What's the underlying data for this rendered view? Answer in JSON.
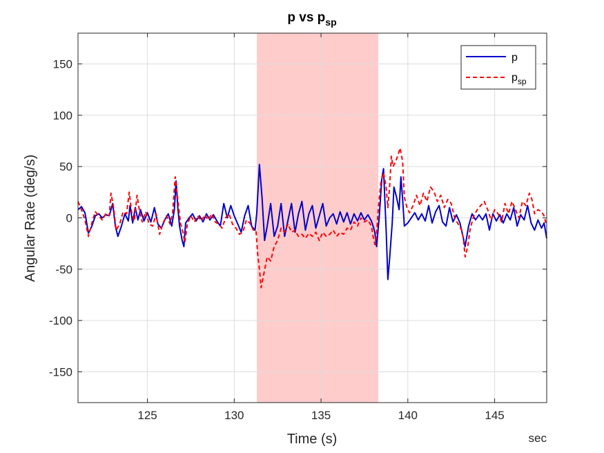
{
  "chart_data": {
    "type": "line",
    "title": "p vs p",
    "title_subscript": "sp",
    "xlabel": "Time (s)",
    "ylabel": "Angular Rate (deg/s)",
    "x_unit_label": "sec",
    "xlim": [
      121,
      148
    ],
    "ylim": [
      -180,
      180
    ],
    "xticks": [
      125,
      130,
      135,
      140,
      145
    ],
    "yticks": [
      -150,
      -100,
      -50,
      0,
      50,
      100,
      150
    ],
    "grid": true,
    "legend_position": "top-right",
    "highlight_region": {
      "x_start": 131.3,
      "x_end": 138.3,
      "color": "#ffcccc"
    },
    "series": [
      {
        "name": "p",
        "color": "#0000cc",
        "dash": "solid",
        "points": [
          [
            121.0,
            8
          ],
          [
            121.2,
            11
          ],
          [
            121.4,
            5
          ],
          [
            121.6,
            -15
          ],
          [
            121.8,
            -8
          ],
          [
            122.0,
            2
          ],
          [
            122.2,
            4
          ],
          [
            122.4,
            0
          ],
          [
            122.6,
            3
          ],
          [
            122.8,
            2
          ],
          [
            123.0,
            14
          ],
          [
            123.15,
            -8
          ],
          [
            123.3,
            -18
          ],
          [
            123.5,
            -8
          ],
          [
            123.7,
            4
          ],
          [
            123.9,
            -3
          ],
          [
            124.0,
            12
          ],
          [
            124.15,
            -5
          ],
          [
            124.3,
            10
          ],
          [
            124.45,
            -2
          ],
          [
            124.6,
            8
          ],
          [
            124.8,
            -3
          ],
          [
            125.0,
            5
          ],
          [
            125.2,
            -4
          ],
          [
            125.4,
            10
          ],
          [
            125.6,
            -6
          ],
          [
            125.8,
            -10
          ],
          [
            126.0,
            -2
          ],
          [
            126.2,
            4
          ],
          [
            126.4,
            -8
          ],
          [
            126.55,
            8
          ],
          [
            126.65,
            36
          ],
          [
            126.75,
            10
          ],
          [
            126.85,
            -8
          ],
          [
            127.0,
            -22
          ],
          [
            127.1,
            -28
          ],
          [
            127.2,
            -5
          ],
          [
            127.4,
            0
          ],
          [
            127.6,
            4
          ],
          [
            127.8,
            -3
          ],
          [
            128.0,
            2
          ],
          [
            128.2,
            -4
          ],
          [
            128.4,
            4
          ],
          [
            128.6,
            -2
          ],
          [
            128.8,
            3
          ],
          [
            129.0,
            -3
          ],
          [
            129.2,
            -8
          ],
          [
            129.4,
            14
          ],
          [
            129.6,
            0
          ],
          [
            129.8,
            12
          ],
          [
            130.0,
            2
          ],
          [
            130.2,
            -6
          ],
          [
            130.4,
            -14
          ],
          [
            130.6,
            2
          ],
          [
            130.8,
            12
          ],
          [
            131.0,
            -8
          ],
          [
            131.2,
            -12
          ],
          [
            131.3,
            5
          ],
          [
            131.45,
            52
          ],
          [
            131.6,
            20
          ],
          [
            131.75,
            -22
          ],
          [
            131.9,
            -8
          ],
          [
            132.1,
            14
          ],
          [
            132.3,
            -18
          ],
          [
            132.5,
            -8
          ],
          [
            132.7,
            14
          ],
          [
            132.9,
            -18
          ],
          [
            133.1,
            -2
          ],
          [
            133.3,
            14
          ],
          [
            133.5,
            -14
          ],
          [
            133.7,
            4
          ],
          [
            133.9,
            16
          ],
          [
            134.1,
            -12
          ],
          [
            134.3,
            4
          ],
          [
            134.5,
            12
          ],
          [
            134.7,
            -10
          ],
          [
            134.9,
            2
          ],
          [
            135.1,
            14
          ],
          [
            135.3,
            -8
          ],
          [
            135.5,
            0
          ],
          [
            135.7,
            4
          ],
          [
            135.9,
            -6
          ],
          [
            136.1,
            6
          ],
          [
            136.3,
            -4
          ],
          [
            136.5,
            5
          ],
          [
            136.7,
            -6
          ],
          [
            136.9,
            4
          ],
          [
            137.1,
            -3
          ],
          [
            137.3,
            5
          ],
          [
            137.5,
            -2
          ],
          [
            137.7,
            3
          ],
          [
            137.9,
            -3
          ],
          [
            138.0,
            -8
          ],
          [
            138.1,
            -14
          ],
          [
            138.2,
            -28
          ],
          [
            138.35,
            0
          ],
          [
            138.5,
            38
          ],
          [
            138.6,
            48
          ],
          [
            138.75,
            -12
          ],
          [
            138.85,
            -60
          ],
          [
            138.95,
            -40
          ],
          [
            139.1,
            -5
          ],
          [
            139.2,
            30
          ],
          [
            139.35,
            20
          ],
          [
            139.5,
            8
          ],
          [
            139.6,
            40
          ],
          [
            139.7,
            18
          ],
          [
            139.8,
            -8
          ],
          [
            140.0,
            -5
          ],
          [
            140.2,
            0
          ],
          [
            140.4,
            5
          ],
          [
            140.6,
            -2
          ],
          [
            140.8,
            4
          ],
          [
            141.0,
            -3
          ],
          [
            141.2,
            12
          ],
          [
            141.4,
            -5
          ],
          [
            141.6,
            6
          ],
          [
            141.8,
            12
          ],
          [
            142.0,
            -4
          ],
          [
            142.2,
            -8
          ],
          [
            142.4,
            10
          ],
          [
            142.6,
            -4
          ],
          [
            142.8,
            3
          ],
          [
            143.0,
            -5
          ],
          [
            143.2,
            -20
          ],
          [
            143.3,
            -28
          ],
          [
            143.5,
            -8
          ],
          [
            143.7,
            4
          ],
          [
            143.9,
            -2
          ],
          [
            144.1,
            3
          ],
          [
            144.3,
            -2
          ],
          [
            144.5,
            4
          ],
          [
            144.7,
            -12
          ],
          [
            144.9,
            4
          ],
          [
            145.1,
            -3
          ],
          [
            145.3,
            3
          ],
          [
            145.5,
            -5
          ],
          [
            145.7,
            4
          ],
          [
            145.9,
            -2
          ],
          [
            146.1,
            10
          ],
          [
            146.3,
            -8
          ],
          [
            146.5,
            3
          ],
          [
            146.7,
            -2
          ],
          [
            146.9,
            12
          ],
          [
            147.1,
            -5
          ],
          [
            147.3,
            -12
          ],
          [
            147.5,
            -2
          ],
          [
            147.7,
            -10
          ],
          [
            147.85,
            -5
          ],
          [
            148.0,
            -20
          ]
        ]
      },
      {
        "name": "p",
        "name_subscript": "sp",
        "color": "#ff0000",
        "dash": "dashed",
        "points": [
          [
            121.0,
            16
          ],
          [
            121.2,
            8
          ],
          [
            121.4,
            -2
          ],
          [
            121.6,
            -18
          ],
          [
            121.8,
            -5
          ],
          [
            122.0,
            6
          ],
          [
            122.2,
            2
          ],
          [
            122.4,
            -2
          ],
          [
            122.6,
            4
          ],
          [
            122.8,
            2
          ],
          [
            122.9,
            24
          ],
          [
            123.05,
            10
          ],
          [
            123.2,
            -12
          ],
          [
            123.4,
            -6
          ],
          [
            123.6,
            6
          ],
          [
            123.8,
            4
          ],
          [
            123.95,
            25
          ],
          [
            124.1,
            4
          ],
          [
            124.25,
            -3
          ],
          [
            124.4,
            22
          ],
          [
            124.55,
            6
          ],
          [
            124.7,
            -4
          ],
          [
            124.9,
            6
          ],
          [
            125.1,
            -6
          ],
          [
            125.3,
            -8
          ],
          [
            125.5,
            4
          ],
          [
            125.7,
            -16
          ],
          [
            125.9,
            -5
          ],
          [
            126.1,
            2
          ],
          [
            126.3,
            -6
          ],
          [
            126.45,
            5
          ],
          [
            126.6,
            40
          ],
          [
            126.75,
            18
          ],
          [
            126.9,
            -5
          ],
          [
            127.05,
            -14
          ],
          [
            127.15,
            -24
          ],
          [
            127.3,
            -6
          ],
          [
            127.5,
            2
          ],
          [
            127.7,
            -4
          ],
          [
            127.9,
            2
          ],
          [
            128.1,
            -3
          ],
          [
            128.3,
            3
          ],
          [
            128.5,
            -2
          ],
          [
            128.7,
            4
          ],
          [
            128.9,
            -4
          ],
          [
            129.1,
            -6
          ],
          [
            129.3,
            -10
          ],
          [
            129.5,
            0
          ],
          [
            129.7,
            4
          ],
          [
            129.9,
            -6
          ],
          [
            130.1,
            -10
          ],
          [
            130.3,
            -16
          ],
          [
            130.5,
            -14
          ],
          [
            130.7,
            -2
          ],
          [
            130.9,
            -5
          ],
          [
            131.1,
            -12
          ],
          [
            131.25,
            -12
          ],
          [
            131.35,
            -35
          ],
          [
            131.45,
            -50
          ],
          [
            131.55,
            -68
          ],
          [
            131.7,
            -55
          ],
          [
            131.9,
            -38
          ],
          [
            132.1,
            -42
          ],
          [
            132.3,
            -28
          ],
          [
            132.5,
            -22
          ],
          [
            132.7,
            -10
          ],
          [
            132.9,
            -14
          ],
          [
            133.1,
            -6
          ],
          [
            133.3,
            -14
          ],
          [
            133.5,
            -12
          ],
          [
            133.7,
            -18
          ],
          [
            133.9,
            -16
          ],
          [
            134.1,
            -20
          ],
          [
            134.3,
            -15
          ],
          [
            134.5,
            -18
          ],
          [
            134.7,
            -14
          ],
          [
            134.9,
            -22
          ],
          [
            135.1,
            -14
          ],
          [
            135.3,
            -18
          ],
          [
            135.5,
            -16
          ],
          [
            135.7,
            -12
          ],
          [
            135.9,
            -18
          ],
          [
            136.1,
            -14
          ],
          [
            136.3,
            -16
          ],
          [
            136.5,
            -10
          ],
          [
            136.7,
            -12
          ],
          [
            136.9,
            -4
          ],
          [
            137.1,
            -8
          ],
          [
            137.3,
            0
          ],
          [
            137.5,
            -4
          ],
          [
            137.7,
            -2
          ],
          [
            137.9,
            -8
          ],
          [
            138.0,
            -18
          ],
          [
            138.1,
            -26
          ],
          [
            138.2,
            -16
          ],
          [
            138.3,
            10
          ],
          [
            138.45,
            35
          ],
          [
            138.6,
            44
          ],
          [
            138.75,
            30
          ],
          [
            138.85,
            10
          ],
          [
            138.95,
            30
          ],
          [
            139.05,
            60
          ],
          [
            139.15,
            50
          ],
          [
            139.3,
            55
          ],
          [
            139.45,
            62
          ],
          [
            139.55,
            68
          ],
          [
            139.7,
            55
          ],
          [
            139.8,
            20
          ],
          [
            139.95,
            10
          ],
          [
            140.1,
            5
          ],
          [
            140.3,
            12
          ],
          [
            140.5,
            22
          ],
          [
            140.7,
            12
          ],
          [
            140.9,
            24
          ],
          [
            141.1,
            16
          ],
          [
            141.3,
            30
          ],
          [
            141.5,
            26
          ],
          [
            141.7,
            16
          ],
          [
            141.9,
            22
          ],
          [
            142.1,
            10
          ],
          [
            142.3,
            18
          ],
          [
            142.5,
            14
          ],
          [
            142.7,
            0
          ],
          [
            142.9,
            -6
          ],
          [
            143.1,
            -12
          ],
          [
            143.2,
            -20
          ],
          [
            143.3,
            -38
          ],
          [
            143.45,
            -28
          ],
          [
            143.6,
            -10
          ],
          [
            143.8,
            2
          ],
          [
            144.0,
            8
          ],
          [
            144.2,
            12
          ],
          [
            144.4,
            16
          ],
          [
            144.6,
            8
          ],
          [
            144.8,
            -2
          ],
          [
            145.0,
            8
          ],
          [
            145.2,
            4
          ],
          [
            145.4,
            -4
          ],
          [
            145.6,
            14
          ],
          [
            145.8,
            4
          ],
          [
            146.0,
            16
          ],
          [
            146.2,
            8
          ],
          [
            146.4,
            0
          ],
          [
            146.6,
            16
          ],
          [
            146.8,
            12
          ],
          [
            147.0,
            24
          ],
          [
            147.15,
            18
          ],
          [
            147.3,
            4
          ],
          [
            147.5,
            8
          ],
          [
            147.7,
            6
          ],
          [
            147.85,
            2
          ],
          [
            148.0,
            -8
          ]
        ]
      }
    ]
  }
}
